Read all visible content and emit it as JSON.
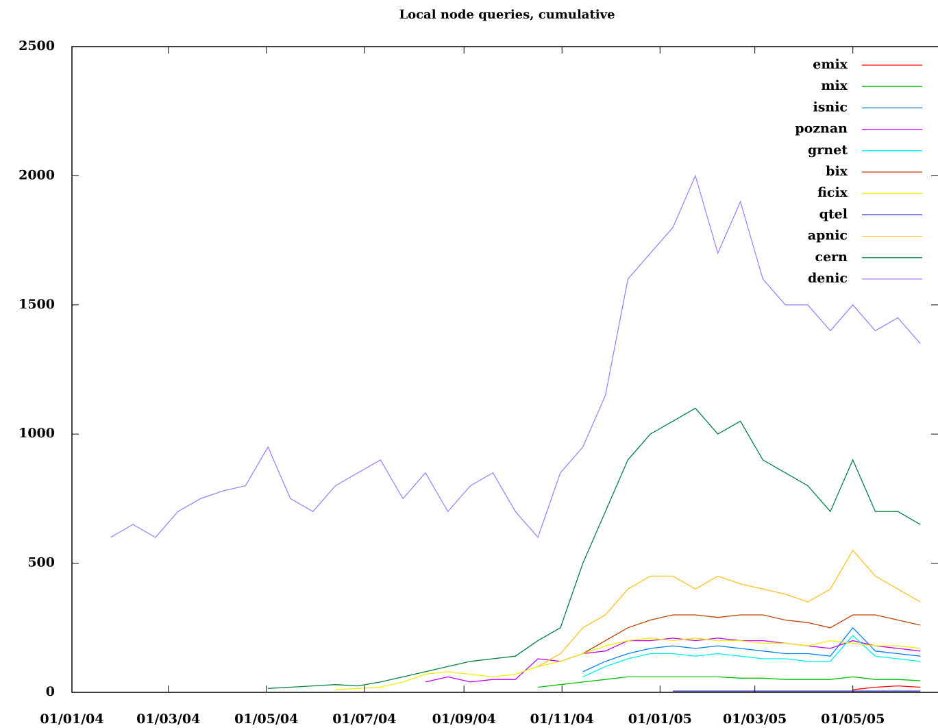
{
  "chart_data": {
    "type": "line",
    "title": "Local node queries, cumulative",
    "x": [
      "2004-01-11",
      "2004-01-25",
      "2004-02-08",
      "2004-02-22",
      "2004-03-07",
      "2004-03-21",
      "2004-04-04",
      "2004-04-18",
      "2004-05-02",
      "2004-05-16",
      "2004-05-30",
      "2004-06-13",
      "2004-06-27",
      "2004-07-11",
      "2004-07-25",
      "2004-08-08",
      "2004-08-22",
      "2004-09-05",
      "2004-09-19",
      "2004-10-03",
      "2004-10-17",
      "2004-10-31",
      "2004-11-14",
      "2004-11-28",
      "2004-12-12",
      "2004-12-26",
      "2005-01-09",
      "2005-01-23",
      "2005-02-06",
      "2005-02-20",
      "2005-03-06",
      "2005-03-20",
      "2005-04-03",
      "2005-04-17",
      "2005-05-01",
      "2005-05-15",
      "2005-05-29",
      "2005-06-12"
    ],
    "xlim": [
      "2004-01-01",
      "2005-06-23"
    ],
    "xticks": [
      {
        "value": "2004-01-01",
        "label": "01/01/04"
      },
      {
        "value": "2004-03-01",
        "label": "01/03/04"
      },
      {
        "value": "2004-05-01",
        "label": "01/05/04"
      },
      {
        "value": "2004-07-01",
        "label": "01/07/04"
      },
      {
        "value": "2004-09-01",
        "label": "01/09/04"
      },
      {
        "value": "2004-11-01",
        "label": "01/11/04"
      },
      {
        "value": "2005-01-01",
        "label": "01/01/05"
      },
      {
        "value": "2005-03-01",
        "label": "01/03/05"
      },
      {
        "value": "2005-05-01",
        "label": "01/05/05"
      }
    ],
    "ylim": [
      0,
      2500
    ],
    "yticks": [
      0,
      500,
      1000,
      1500,
      2000,
      2500
    ],
    "legend": "top-right",
    "series": [
      {
        "name": "emix",
        "color": "#ff0000",
        "values": [
          null,
          null,
          null,
          null,
          null,
          null,
          null,
          null,
          null,
          null,
          null,
          null,
          null,
          null,
          null,
          null,
          null,
          null,
          null,
          null,
          null,
          null,
          null,
          null,
          null,
          null,
          null,
          null,
          null,
          null,
          null,
          null,
          null,
          null,
          10,
          20,
          25,
          20
        ]
      },
      {
        "name": "mix",
        "color": "#00c000",
        "values": [
          null,
          null,
          null,
          null,
          null,
          null,
          null,
          null,
          null,
          null,
          null,
          null,
          null,
          null,
          null,
          null,
          null,
          null,
          null,
          null,
          20,
          30,
          40,
          50,
          60,
          60,
          60,
          60,
          60,
          55,
          55,
          50,
          50,
          50,
          60,
          50,
          50,
          45
        ]
      },
      {
        "name": "isnic",
        "color": "#0080ff",
        "values": [
          null,
          null,
          null,
          null,
          null,
          null,
          null,
          null,
          null,
          null,
          null,
          null,
          null,
          null,
          null,
          null,
          null,
          null,
          null,
          null,
          null,
          null,
          80,
          120,
          150,
          170,
          180,
          170,
          180,
          170,
          160,
          150,
          150,
          140,
          250,
          160,
          150,
          140
        ]
      },
      {
        "name": "poznan",
        "color": "#c000ff",
        "values": [
          null,
          null,
          null,
          null,
          null,
          null,
          null,
          null,
          null,
          null,
          null,
          null,
          null,
          null,
          null,
          40,
          60,
          40,
          50,
          50,
          130,
          120,
          150,
          160,
          200,
          200,
          210,
          200,
          210,
          200,
          200,
          190,
          180,
          170,
          200,
          180,
          170,
          160
        ]
      },
      {
        "name": "grnet",
        "color": "#00eeee",
        "values": [
          null,
          null,
          null,
          null,
          null,
          null,
          null,
          null,
          null,
          null,
          null,
          null,
          null,
          null,
          null,
          null,
          null,
          null,
          null,
          null,
          null,
          null,
          60,
          100,
          130,
          150,
          150,
          140,
          150,
          140,
          130,
          130,
          120,
          120,
          220,
          140,
          130,
          120
        ]
      },
      {
        "name": "bix",
        "color": "#c04000",
        "values": [
          null,
          null,
          null,
          null,
          null,
          null,
          null,
          null,
          null,
          null,
          null,
          null,
          null,
          null,
          null,
          null,
          null,
          null,
          null,
          null,
          null,
          null,
          150,
          200,
          250,
          280,
          300,
          300,
          290,
          300,
          300,
          280,
          270,
          250,
          300,
          300,
          280,
          260
        ]
      },
      {
        "name": "ficix",
        "color": "#eeee00",
        "values": [
          null,
          null,
          null,
          null,
          null,
          null,
          null,
          null,
          null,
          null,
          null,
          10,
          15,
          20,
          40,
          70,
          80,
          70,
          60,
          70,
          100,
          120,
          150,
          180,
          200,
          210,
          200,
          210,
          200,
          200,
          190,
          190,
          180,
          200,
          190,
          180,
          180,
          170
        ]
      },
      {
        "name": "qtel",
        "color": "#2020c0",
        "values": [
          null,
          null,
          null,
          null,
          null,
          null,
          null,
          null,
          null,
          null,
          null,
          null,
          null,
          null,
          null,
          null,
          null,
          null,
          null,
          null,
          null,
          null,
          null,
          null,
          null,
          null,
          5,
          5,
          5,
          5,
          5,
          5,
          5,
          5,
          5,
          5,
          5,
          5
        ]
      },
      {
        "name": "apnic",
        "color": "#ffc020",
        "values": [
          null,
          null,
          null,
          null,
          null,
          null,
          null,
          null,
          null,
          null,
          null,
          null,
          null,
          null,
          null,
          null,
          null,
          null,
          null,
          null,
          100,
          150,
          250,
          300,
          400,
          450,
          450,
          400,
          450,
          420,
          400,
          380,
          350,
          400,
          550,
          450,
          400,
          350
        ]
      },
      {
        "name": "cern",
        "color": "#008040",
        "values": [
          null,
          null,
          null,
          null,
          null,
          null,
          null,
          null,
          15,
          20,
          25,
          30,
          25,
          40,
          60,
          80,
          100,
          120,
          130,
          140,
          200,
          250,
          500,
          700,
          900,
          1000,
          1050,
          1100,
          1000,
          1050,
          900,
          850,
          800,
          700,
          900,
          700,
          700,
          650
        ]
      },
      {
        "name": "denic",
        "color": "#a080ff",
        "values": [
          null,
          600,
          650,
          600,
          700,
          750,
          780,
          800,
          950,
          750,
          700,
          800,
          850,
          900,
          750,
          850,
          700,
          800,
          850,
          700,
          600,
          850,
          950,
          1150,
          1600,
          1700,
          1800,
          2000,
          1700,
          1900,
          1600,
          1500,
          1500,
          1400,
          1500,
          1400,
          1450,
          1350
        ]
      }
    ]
  }
}
